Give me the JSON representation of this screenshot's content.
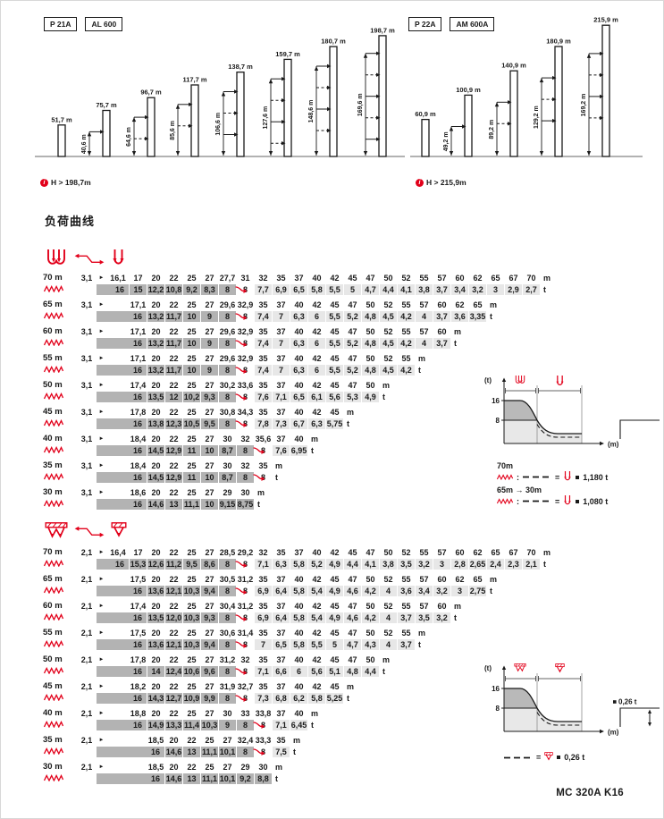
{
  "page": {
    "section_title": "负荷曲线",
    "footer": "MC 320A K16",
    "unit_radius": "m",
    "unit_load": "t",
    "pointer": "►"
  },
  "colors": {
    "accent_red": "#e2001a",
    "dark_cell": "#b3b3b3",
    "light_cell": "#e7e7e7",
    "text": "#1a1a1a"
  },
  "diagrams": [
    {
      "badges": [
        "P 21A",
        "AL 600"
      ],
      "note": "H > 198,7m",
      "masts": [
        "51,7 m",
        "75,7 m",
        "96,7 m",
        "117,7 m",
        "138,7 m",
        "159,7 m",
        "180,7 m",
        "198,7 m"
      ],
      "dims": [
        "40,6 m",
        "64,6 m",
        "85,6 m",
        "106,6 m",
        "127,6 m",
        "148,6 m",
        "169,6 m"
      ]
    },
    {
      "badges": [
        "P 22A",
        "AM 600A"
      ],
      "note": "H > 215,9m",
      "masts": [
        "60,9 m",
        "100,9 m",
        "140,9 m",
        "180,9 m",
        "215,9 m"
      ],
      "dims": [
        "49,2 m",
        "89,2 m",
        "129,2 m",
        "169,2 m"
      ]
    }
  ],
  "load_tables": [
    {
      "hoist_icons": [
        "four-fall-hook",
        "two-fall-hook"
      ],
      "rows": [
        {
          "jib": "70 m",
          "min_radius": "3,1",
          "offset": 0,
          "arrow_at": 6,
          "radii": [
            "16,1",
            "17",
            "20",
            "22",
            "25",
            "27",
            "27,7",
            "31",
            "32",
            "35",
            "37",
            "40",
            "42",
            "45",
            "47",
            "50",
            "52",
            "55",
            "57",
            "60",
            "62",
            "65",
            "67",
            "70"
          ],
          "loads": [
            "16",
            "15",
            "12,2",
            "10,8",
            "9,2",
            "8,3",
            "8",
            "8",
            "7,7",
            "6,9",
            "6,5",
            "5,8",
            "5,5",
            "5",
            "4,7",
            "4,4",
            "4,1",
            "3,8",
            "3,7",
            "3,4",
            "3,2",
            "3",
            "2,9",
            "2,7"
          ]
        },
        {
          "jib": "65 m",
          "min_radius": "3,1",
          "offset": 1,
          "arrow_at": 5,
          "radii": [
            "17,1",
            "20",
            "22",
            "25",
            "27",
            "29,6",
            "32,9",
            "35",
            "37",
            "40",
            "42",
            "45",
            "47",
            "50",
            "52",
            "55",
            "57",
            "60",
            "62",
            "65"
          ],
          "loads": [
            "16",
            "13,2",
            "11,7",
            "10",
            "9",
            "8",
            "8",
            "7,4",
            "7",
            "6,3",
            "6",
            "5,5",
            "5,2",
            "4,8",
            "4,5",
            "4,2",
            "4",
            "3,7",
            "3,6",
            "3,35"
          ]
        },
        {
          "jib": "60 m",
          "min_radius": "3,1",
          "offset": 1,
          "arrow_at": 5,
          "radii": [
            "17,1",
            "20",
            "22",
            "25",
            "27",
            "29,6",
            "32,9",
            "35",
            "37",
            "40",
            "42",
            "45",
            "47",
            "50",
            "52",
            "55",
            "57",
            "60"
          ],
          "loads": [
            "16",
            "13,2",
            "11,7",
            "10",
            "9",
            "8",
            "8",
            "7,4",
            "7",
            "6,3",
            "6",
            "5,5",
            "5,2",
            "4,8",
            "4,5",
            "4,2",
            "4",
            "3,7"
          ]
        },
        {
          "jib": "55 m",
          "min_radius": "3,1",
          "offset": 1,
          "arrow_at": 5,
          "radii": [
            "17,1",
            "20",
            "22",
            "25",
            "27",
            "29,6",
            "32,9",
            "35",
            "37",
            "40",
            "42",
            "45",
            "47",
            "50",
            "52",
            "55"
          ],
          "loads": [
            "16",
            "13,2",
            "11,7",
            "10",
            "9",
            "8",
            "8",
            "7,4",
            "7",
            "6,3",
            "6",
            "5,5",
            "5,2",
            "4,8",
            "4,5",
            "4,2"
          ]
        },
        {
          "jib": "50 m",
          "min_radius": "3,1",
          "offset": 1,
          "arrow_at": 5,
          "radii": [
            "17,4",
            "20",
            "22",
            "25",
            "27",
            "30,2",
            "33,6",
            "35",
            "37",
            "40",
            "42",
            "45",
            "47",
            "50"
          ],
          "loads": [
            "16",
            "13,5",
            "12",
            "10,2",
            "9,3",
            "8",
            "8",
            "7,6",
            "7,1",
            "6,5",
            "6,1",
            "5,6",
            "5,3",
            "4,9"
          ]
        },
        {
          "jib": "45 m",
          "min_radius": "3,1",
          "offset": 1,
          "arrow_at": 5,
          "radii": [
            "17,8",
            "20",
            "22",
            "25",
            "27",
            "30,8",
            "34,3",
            "35",
            "37",
            "40",
            "42",
            "45"
          ],
          "loads": [
            "16",
            "13,8",
            "12,3",
            "10,5",
            "9,5",
            "8",
            "8",
            "7,8",
            "7,3",
            "6,7",
            "6,3",
            "5,75"
          ]
        },
        {
          "jib": "40 m",
          "min_radius": "3,1",
          "offset": 1,
          "arrow_at": 6,
          "radii": [
            "18,4",
            "20",
            "22",
            "25",
            "27",
            "30",
            "32",
            "35,6",
            "37",
            "40"
          ],
          "loads": [
            "16",
            "14,5",
            "12,9",
            "11",
            "10",
            "8,7",
            "8",
            "8",
            "7,6",
            "6,95"
          ]
        },
        {
          "jib": "35 m",
          "min_radius": "3,1",
          "offset": 1,
          "arrow_at": 6,
          "radii": [
            "18,4",
            "20",
            "22",
            "25",
            "27",
            "30",
            "32",
            "35"
          ],
          "loads": [
            "16",
            "14,5",
            "12,9",
            "11",
            "10",
            "8,7",
            "8",
            "8"
          ]
        },
        {
          "jib": "30 m",
          "min_radius": "3,1",
          "offset": 1,
          "arrow_at": -1,
          "radii": [
            "18,6",
            "20",
            "22",
            "25",
            "27",
            "29",
            "30"
          ],
          "loads": [
            "16",
            "14,6",
            "13",
            "11,1",
            "10",
            "9,15",
            "8,75"
          ]
        }
      ]
    },
    {
      "hoist_icons": [
        "four-fall-trolley-hook",
        "two-fall-trolley-hook"
      ],
      "rows": [
        {
          "jib": "70 m",
          "min_radius": "2,1",
          "offset": 0,
          "arrow_at": 6,
          "radii": [
            "16,4",
            "17",
            "20",
            "22",
            "25",
            "27",
            "28,5",
            "29,2",
            "32",
            "35",
            "37",
            "40",
            "42",
            "45",
            "47",
            "50",
            "52",
            "55",
            "57",
            "60",
            "62",
            "65",
            "67",
            "70"
          ],
          "loads": [
            "16",
            "15,3",
            "12,6",
            "11,2",
            "9,5",
            "8,6",
            "8",
            "8",
            "7,1",
            "6,3",
            "5,8",
            "5,2",
            "4,9",
            "4,4",
            "4,1",
            "3,8",
            "3,5",
            "3,2",
            "3",
            "2,8",
            "2,65",
            "2,4",
            "2,3",
            "2,1"
          ]
        },
        {
          "jib": "65 m",
          "min_radius": "2,1",
          "offset": 1,
          "arrow_at": 5,
          "radii": [
            "17,5",
            "20",
            "22",
            "25",
            "27",
            "30,5",
            "31,2",
            "35",
            "37",
            "40",
            "42",
            "45",
            "47",
            "50",
            "52",
            "55",
            "57",
            "60",
            "62",
            "65"
          ],
          "loads": [
            "16",
            "13,6",
            "12,1",
            "10,3",
            "9,4",
            "8",
            "8",
            "6,9",
            "6,4",
            "5,8",
            "5,4",
            "4,9",
            "4,6",
            "4,2",
            "4",
            "3,6",
            "3,4",
            "3,2",
            "3",
            "2,75"
          ]
        },
        {
          "jib": "60 m",
          "min_radius": "2,1",
          "offset": 1,
          "arrow_at": 5,
          "radii": [
            "17,4",
            "20",
            "22",
            "25",
            "27",
            "30,4",
            "31,2",
            "35",
            "37",
            "40",
            "42",
            "45",
            "47",
            "50",
            "52",
            "55",
            "57",
            "60"
          ],
          "loads": [
            "16",
            "13,5",
            "12,0",
            "10,3",
            "9,3",
            "8",
            "8",
            "6,9",
            "6,4",
            "5,8",
            "5,4",
            "4,9",
            "4,6",
            "4,2",
            "4",
            "3,7",
            "3,5",
            "3,2"
          ]
        },
        {
          "jib": "55 m",
          "min_radius": "2,1",
          "offset": 1,
          "arrow_at": 5,
          "radii": [
            "17,5",
            "20",
            "22",
            "25",
            "27",
            "30,6",
            "31,4",
            "35",
            "37",
            "40",
            "42",
            "45",
            "47",
            "50",
            "52",
            "55"
          ],
          "loads": [
            "16",
            "13,6",
            "12,1",
            "10,3",
            "9,4",
            "8",
            "8",
            "7",
            "6,5",
            "5,8",
            "5,5",
            "5",
            "4,7",
            "4,3",
            "4",
            "3,7"
          ]
        },
        {
          "jib": "50 m",
          "min_radius": "2,1",
          "offset": 1,
          "arrow_at": 5,
          "radii": [
            "17,8",
            "20",
            "22",
            "25",
            "27",
            "31,2",
            "32",
            "35",
            "37",
            "40",
            "42",
            "45",
            "47",
            "50"
          ],
          "loads": [
            "16",
            "14",
            "12,4",
            "10,6",
            "9,6",
            "8",
            "8",
            "7,1",
            "6,6",
            "6",
            "5,6",
            "5,1",
            "4,8",
            "4,4"
          ]
        },
        {
          "jib": "45 m",
          "min_radius": "2,1",
          "offset": 1,
          "arrow_at": 5,
          "radii": [
            "18,2",
            "20",
            "22",
            "25",
            "27",
            "31,9",
            "32,7",
            "35",
            "37",
            "40",
            "42",
            "45"
          ],
          "loads": [
            "16",
            "14,3",
            "12,7",
            "10,9",
            "9,9",
            "8",
            "8",
            "7,3",
            "6,8",
            "6,2",
            "5,8",
            "5,25"
          ]
        },
        {
          "jib": "40 m",
          "min_radius": "2,1",
          "offset": 1,
          "arrow_at": 6,
          "radii": [
            "18,8",
            "20",
            "22",
            "25",
            "27",
            "30",
            "33",
            "33,8",
            "37",
            "40"
          ],
          "loads": [
            "16",
            "14,9",
            "13,3",
            "11,4",
            "10,3",
            "9",
            "8",
            "8",
            "7,1",
            "6,45"
          ]
        },
        {
          "jib": "35 m",
          "min_radius": "2,1",
          "offset": 2,
          "arrow_at": 5,
          "radii": [
            "18,5",
            "20",
            "22",
            "25",
            "27",
            "32,4",
            "33,3",
            "35"
          ],
          "loads": [
            "16",
            "14,6",
            "13",
            "11,1",
            "10,1",
            "8",
            "8",
            "7,5"
          ]
        },
        {
          "jib": "30 m",
          "min_radius": "2,1",
          "offset": 2,
          "arrow_at": -1,
          "radii": [
            "18,5",
            "20",
            "22",
            "25",
            "27",
            "29",
            "30"
          ],
          "loads": [
            "16",
            "14,6",
            "13",
            "11,1",
            "10,1",
            "9,2",
            "8,8"
          ]
        }
      ]
    }
  ],
  "charts": [
    {
      "ylabel": "(t)",
      "xlabel": "(m)",
      "y_ticks": [
        "16",
        "8"
      ],
      "legend": [
        {
          "jib": "70m",
          "jib_to": "",
          "value": "1,180 t"
        },
        {
          "jib": "65m",
          "jib_to": "30m",
          "value": "1,080 t"
        }
      ]
    },
    {
      "ylabel": "(t)",
      "xlabel": "(m)",
      "y_ticks": [
        "16",
        "8"
      ],
      "annotation": "0,26 t",
      "legend": [
        {
          "jib": "",
          "jib_to": "",
          "value": "0,26 t"
        }
      ]
    }
  ],
  "chart_data": [
    {
      "type": "line",
      "title": "Load curve schematic — hoist table 1",
      "ylabel": "(t)",
      "xlabel": "(m)",
      "y_ticks": [
        16,
        8
      ],
      "ylim": [
        0,
        18
      ],
      "series": [
        {
          "name": "70 m jib",
          "x": [
            16.1,
            17,
            20,
            22,
            25,
            27,
            27.7,
            31,
            32,
            35,
            37,
            40,
            42,
            45,
            47,
            50,
            52,
            55,
            57,
            60,
            62,
            65,
            67,
            70
          ],
          "values": [
            16,
            15,
            12.2,
            10.8,
            9.2,
            8.3,
            8,
            8,
            7.7,
            6.9,
            6.5,
            5.8,
            5.5,
            5,
            4.7,
            4.4,
            4.1,
            3.8,
            3.7,
            3.4,
            3.2,
            3,
            2.9,
            2.7
          ]
        }
      ],
      "legend_entries": [
        {
          "label": "70m",
          "value": "-1,180 t"
        },
        {
          "label": "65m → 30m",
          "value": "-1,080 t"
        }
      ]
    },
    {
      "type": "line",
      "title": "Load curve schematic — hoist table 2",
      "ylabel": "(t)",
      "xlabel": "(m)",
      "y_ticks": [
        16,
        8
      ],
      "ylim": [
        0,
        18
      ],
      "series": [
        {
          "name": "70 m jib",
          "x": [
            16.4,
            17,
            20,
            22,
            25,
            27,
            28.5,
            29.2,
            32,
            35,
            37,
            40,
            42,
            45,
            47,
            50,
            52,
            55,
            57,
            60,
            62,
            65,
            67,
            70
          ],
          "values": [
            16,
            15.3,
            12.6,
            11.2,
            9.5,
            8.6,
            8,
            8,
            7.1,
            6.3,
            5.8,
            5.2,
            4.9,
            4.4,
            4.1,
            3.8,
            3.5,
            3.2,
            3,
            2.8,
            2.65,
            2.4,
            2.3,
            2.1
          ]
        }
      ],
      "annotation": "-0,26 t",
      "legend_entries": [
        {
          "label": "dashed curve",
          "value": "-0,26 t"
        }
      ]
    }
  ]
}
